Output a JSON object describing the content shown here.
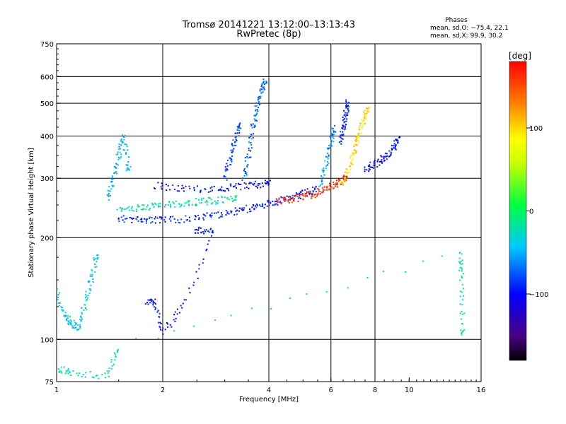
{
  "title_line1": "Tromsø 20141221 13:12:00–13:13:43",
  "title_line2": "RwPretec (8p)",
  "phases": {
    "heading": "Phases",
    "line_o": "mean, sd,O: −75.4, 22.1",
    "line_x": "mean, sd,X:  99.9, 30.2"
  },
  "colorbar": {
    "label": "[deg]",
    "ticks": [
      {
        "value": 100,
        "label": "100"
      },
      {
        "value": 0,
        "label": "0"
      },
      {
        "value": -100,
        "label": "−100"
      }
    ],
    "range": [
      -180,
      180
    ],
    "scale": "rainbow"
  },
  "chart_data": {
    "type": "scatter",
    "xlabel": "Frequency [MHz]",
    "ylabel": "Stationary phase Virtual Height [km]",
    "xscale": "log2",
    "yscale": "log",
    "xlim": [
      1,
      16
    ],
    "ylim": [
      75,
      750
    ],
    "xticks": [
      {
        "value": 1,
        "label": "1"
      },
      {
        "value": 2,
        "label": "2"
      },
      {
        "value": 4,
        "label": "4"
      },
      {
        "value": 6,
        "label": "6"
      },
      {
        "value": 8,
        "label": "8"
      },
      {
        "value": 10,
        "label": "10"
      },
      {
        "value": 16,
        "label": "16"
      }
    ],
    "xgrid": [
      2,
      4,
      6,
      8
    ],
    "yticks": [
      {
        "value": 75,
        "label": "75"
      },
      {
        "value": 100,
        "label": "100"
      },
      {
        "value": 200,
        "label": "200"
      },
      {
        "value": 300,
        "label": "300"
      },
      {
        "value": 400,
        "label": "400"
      },
      {
        "value": 500,
        "label": "500"
      },
      {
        "value": 600,
        "label": "600"
      },
      {
        "value": 750,
        "label": "750"
      }
    ],
    "ygrid": [
      100,
      200,
      300,
      400,
      500,
      600
    ],
    "grid": true,
    "series": [
      {
        "color_phase": -90,
        "points": [
          [
            1.5,
            228
          ],
          [
            1.7,
            226
          ],
          [
            1.9,
            225
          ],
          [
            2.2,
            226
          ],
          [
            2.6,
            230
          ],
          [
            3.0,
            236
          ],
          [
            3.4,
            242
          ],
          [
            3.8,
            248
          ],
          [
            4.2,
            255
          ],
          [
            4.6,
            262
          ],
          [
            5.0,
            270
          ],
          [
            5.4,
            278
          ]
        ]
      },
      {
        "color_phase": -20,
        "points": [
          [
            1.5,
            240
          ],
          [
            1.7,
            245
          ],
          [
            1.9,
            248
          ],
          [
            2.2,
            252
          ],
          [
            2.5,
            255
          ],
          [
            2.8,
            257
          ],
          [
            3.2,
            262
          ]
        ]
      },
      {
        "color_phase": -100,
        "points": [
          [
            1.9,
            285
          ],
          [
            2.3,
            280
          ],
          [
            2.8,
            278
          ],
          [
            3.2,
            282
          ],
          [
            3.6,
            286
          ],
          [
            4.0,
            290
          ]
        ]
      },
      {
        "color_phase": 160,
        "points": [
          [
            4.2,
            256
          ],
          [
            4.6,
            260
          ],
          [
            5.0,
            264
          ],
          [
            5.4,
            270
          ],
          [
            5.8,
            278
          ],
          [
            6.2,
            288
          ],
          [
            6.6,
            300
          ]
        ]
      },
      {
        "color_phase": 100,
        "points": [
          [
            6.4,
            285
          ],
          [
            6.8,
            320
          ],
          [
            7.0,
            360
          ],
          [
            7.2,
            400
          ],
          [
            7.4,
            440
          ],
          [
            7.6,
            480
          ]
        ]
      },
      {
        "color_phase": -100,
        "points": [
          [
            7.5,
            320
          ],
          [
            8.0,
            330
          ],
          [
            8.5,
            345
          ],
          [
            9.0,
            365
          ],
          [
            9.3,
            390
          ]
        ]
      },
      {
        "color_phase": -70,
        "points": [
          [
            3.4,
            300
          ],
          [
            3.5,
            350
          ],
          [
            3.6,
            420
          ],
          [
            3.7,
            480
          ],
          [
            3.8,
            540
          ],
          [
            3.9,
            575
          ]
        ]
      },
      {
        "color_phase": -80,
        "points": [
          [
            3.0,
            300
          ],
          [
            3.1,
            340
          ],
          [
            3.2,
            380
          ],
          [
            3.3,
            430
          ]
        ]
      },
      {
        "color_phase": -60,
        "points": [
          [
            5.6,
            280
          ],
          [
            5.8,
            330
          ],
          [
            6.0,
            380
          ],
          [
            6.1,
            420
          ]
        ]
      },
      {
        "color_phase": -90,
        "points": [
          [
            6.4,
            380
          ],
          [
            6.5,
            420
          ],
          [
            6.6,
            460
          ],
          [
            6.7,
            500
          ]
        ]
      },
      {
        "color_phase": -40,
        "points": [
          [
            1.0,
            140
          ],
          [
            1.05,
            118
          ],
          [
            1.1,
            112
          ],
          [
            1.15,
            108
          ],
          [
            1.2,
            125
          ],
          [
            1.25,
            150
          ],
          [
            1.3,
            175
          ]
        ]
      },
      {
        "color_phase": -50,
        "points": [
          [
            1.4,
            260
          ],
          [
            1.45,
            300
          ],
          [
            1.5,
            350
          ],
          [
            1.55,
            400
          ],
          [
            1.6,
            320
          ]
        ]
      },
      {
        "color_phase": -100,
        "points": [
          [
            1.8,
            130
          ],
          [
            1.9,
            128
          ],
          [
            2.0,
            105
          ],
          [
            2.3,
            125
          ],
          [
            2.8,
            208
          ],
          [
            2.5,
            210
          ]
        ]
      },
      {
        "color_phase": -20,
        "points": [
          [
            1.0,
            82
          ],
          [
            1.1,
            80
          ],
          [
            1.4,
            78
          ],
          [
            1.5,
            95
          ],
          [
            14.0,
            180
          ],
          [
            14.1,
            150
          ],
          [
            14.2,
            105
          ]
        ]
      }
    ]
  }
}
